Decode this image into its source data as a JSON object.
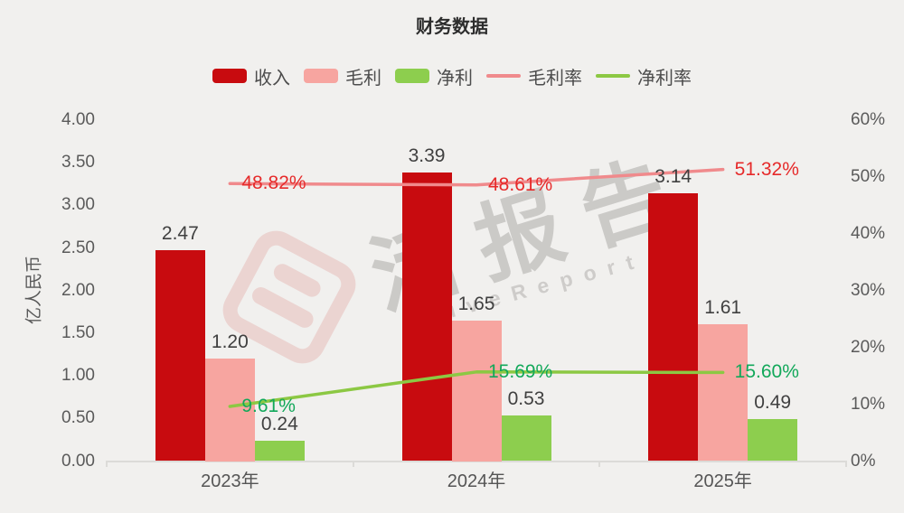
{
  "title": "财务数据",
  "watermark": {
    "cn": "活报告",
    "en": "LiveReport"
  },
  "chart_data": {
    "type": "bar+line",
    "title": "财务数据",
    "categories": [
      "2023年",
      "2024年",
      "2025年"
    ],
    "bar_series": [
      {
        "key": "revenue",
        "name": "收入",
        "values": [
          2.47,
          3.39,
          3.14
        ],
        "labels": [
          "2.47",
          "3.39",
          "3.14"
        ],
        "color": "#C80B0F"
      },
      {
        "key": "gross-profit",
        "name": "毛利",
        "values": [
          1.2,
          1.65,
          1.61
        ],
        "labels": [
          "1.20",
          "1.65",
          "1.61"
        ],
        "color": "#F7A5A0"
      },
      {
        "key": "net-profit",
        "name": "净利",
        "values": [
          0.24,
          0.53,
          0.49
        ],
        "labels": [
          "0.24",
          "0.53",
          "0.49"
        ],
        "color": "#8DCE4E"
      }
    ],
    "line_series": [
      {
        "key": "gross-margin",
        "name": "毛利率",
        "values": [
          48.82,
          48.61,
          51.32
        ],
        "labels": [
          "48.82%",
          "48.61%",
          "51.32%"
        ],
        "color": "#F08A8C",
        "label_color": "#E62A2A"
      },
      {
        "key": "net-margin",
        "name": "净利率",
        "values": [
          9.61,
          15.69,
          15.6
        ],
        "labels": [
          "9.61%",
          "15.69%",
          "15.60%"
        ],
        "color": "#8CC843",
        "label_color": "#12A85A"
      }
    ],
    "left_axis": {
      "name": "亿人民币",
      "min": 0,
      "max": 4,
      "ticks": [
        "0.00",
        "0.50",
        "1.00",
        "1.50",
        "2.00",
        "2.50",
        "3.00",
        "3.50",
        "4.00"
      ]
    },
    "right_axis": {
      "min": 0,
      "max": 60,
      "ticks": [
        "0%",
        "10%",
        "20%",
        "30%",
        "40%",
        "50%",
        "60%"
      ]
    },
    "grid": false,
    "legend_position": "top",
    "background_color": "#F1F0EE"
  }
}
